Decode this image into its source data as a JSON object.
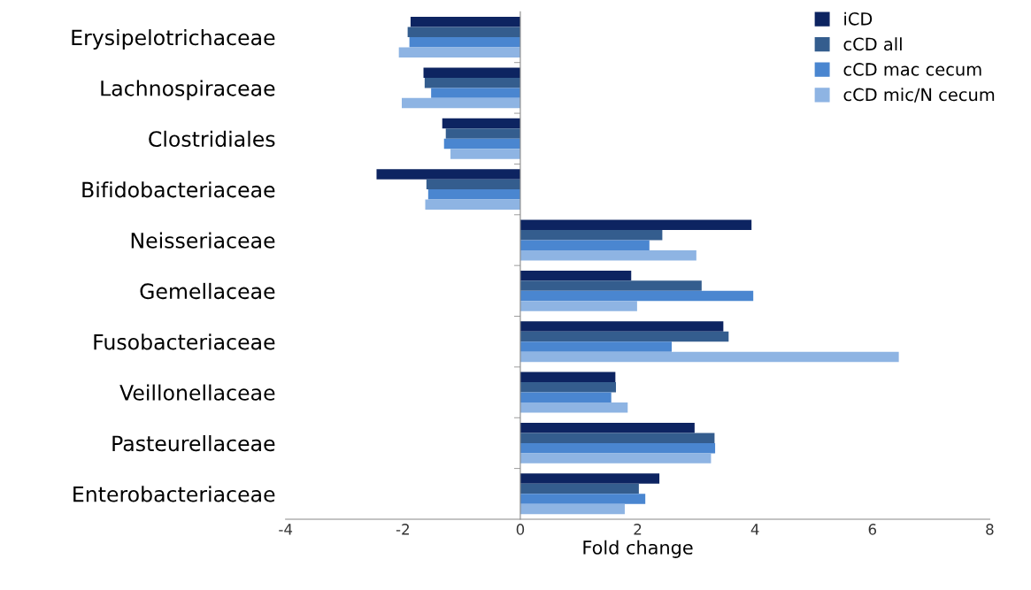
{
  "chart_data": {
    "type": "bar",
    "orientation": "horizontal",
    "xlabel": "Fold change",
    "categories": [
      "Erysipelotrichaceae",
      "Lachnospiraceae",
      "Clostridiales",
      "Bifidobacteriaceae",
      "Neisseriaceae",
      "Gemellaceae",
      "Fusobacteriaceae",
      "Veillonellaceae",
      "Pasteurellaceae",
      "Enterobacteriaceae"
    ],
    "series": [
      {
        "name": "iCD",
        "color": "#0d2461",
        "values": [
          -1.87,
          -1.65,
          -1.33,
          -2.45,
          3.94,
          1.89,
          3.46,
          1.62,
          2.97,
          2.37
        ]
      },
      {
        "name": "cCD all",
        "color": "#345d8e",
        "values": [
          -1.92,
          -1.63,
          -1.27,
          -1.6,
          2.42,
          3.09,
          3.55,
          1.63,
          3.31,
          2.02
        ]
      },
      {
        "name": "cCD mac cecum",
        "color": "#4a86d0",
        "values": [
          -1.89,
          -1.52,
          -1.3,
          -1.57,
          2.2,
          3.97,
          2.58,
          1.55,
          3.32,
          2.13
        ]
      },
      {
        "name": "cCD mic/N cecum",
        "color": "#8eb4e3",
        "values": [
          -2.07,
          -2.02,
          -1.19,
          -1.62,
          3.0,
          1.99,
          6.45,
          1.83,
          3.25,
          1.78
        ]
      }
    ],
    "xlim": [
      -4,
      8
    ],
    "xticks": [
      -4,
      -2,
      0,
      2,
      4,
      6,
      8
    ],
    "legend": "top right"
  }
}
